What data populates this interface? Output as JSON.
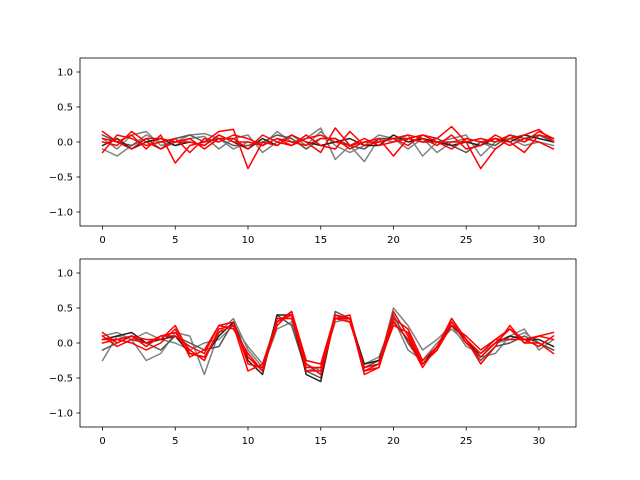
{
  "chart_data": [
    {
      "type": "line",
      "title": "",
      "xlabel": "",
      "ylabel": "",
      "xlim": [
        -1.55,
        32.55
      ],
      "ylim": [
        -1.2,
        1.2
      ],
      "xticks": [
        0,
        5,
        10,
        15,
        20,
        25,
        30
      ],
      "yticks": [
        -1.0,
        -0.5,
        0.0,
        0.5,
        1.0
      ],
      "xtick_labels": [
        "0",
        "5",
        "10",
        "15",
        "20",
        "25",
        "30"
      ],
      "ytick_labels": [
        "−1.0",
        "−0.5",
        "0.0",
        "0.5",
        "1.0"
      ],
      "grid": false,
      "x": [
        0,
        1,
        2,
        3,
        4,
        5,
        6,
        7,
        8,
        9,
        10,
        11,
        12,
        13,
        14,
        15,
        16,
        17,
        18,
        19,
        20,
        21,
        22,
        23,
        24,
        25,
        26,
        27,
        28,
        29,
        30,
        31
      ],
      "series": [
        {
          "color": "#808080",
          "values": [
            0.05,
            -0.1,
            0.1,
            0.15,
            -0.05,
            0.0,
            0.1,
            0.12,
            0.05,
            -0.1,
            0.0,
            -0.05,
            0.15,
            0.0,
            0.05,
            0.2,
            -0.25,
            -0.05,
            -0.28,
            0.05,
            0.0,
            0.1,
            -0.2,
            0.0,
            0.05,
            0.1,
            -0.2,
            0.0,
            0.05,
            0.0,
            0.1,
            0.02
          ]
        },
        {
          "color": "#808080",
          "values": [
            -0.1,
            -0.2,
            -0.05,
            0.1,
            0.0,
            -0.05,
            0.05,
            0.08,
            -0.1,
            0.05,
            0.1,
            -0.15,
            0.0,
            0.1,
            -0.05,
            0.15,
            -0.05,
            -0.15,
            -0.05,
            0.1,
            0.05,
            -0.1,
            0.05,
            -0.15,
            0.0,
            0.05,
            0.0,
            -0.1,
            0.05,
            -0.05,
            0.0,
            -0.05
          ]
        },
        {
          "color": "#555555",
          "values": [
            0.1,
            0.0,
            -0.05,
            0.05,
            -0.1,
            0.05,
            0.1,
            0.0,
            0.05,
            -0.05,
            -0.05,
            0.0,
            0.1,
            0.05,
            -0.1,
            0.05,
            0.05,
            -0.05,
            -0.1,
            0.05,
            0.05,
            0.05,
            0.0,
            0.05,
            -0.05,
            -0.15,
            0.0,
            -0.05,
            0.1,
            0.05,
            0.1,
            0.0
          ]
        },
        {
          "color": "#222222",
          "values": [
            -0.05,
            0.05,
            -0.1,
            0.0,
            0.05,
            -0.05,
            0.0,
            -0.05,
            0.1,
            0.0,
            -0.1,
            0.05,
            -0.05,
            0.1,
            0.0,
            -0.05,
            0.0,
            0.05,
            -0.05,
            -0.05,
            0.1,
            0.0,
            0.05,
            0.0,
            -0.05,
            0.0,
            -0.05,
            0.05,
            0.0,
            0.1,
            0.05,
            0.0
          ]
        },
        {
          "color": "#ff0000",
          "values": [
            0.15,
            0.0,
            0.1,
            -0.1,
            0.1,
            -0.3,
            -0.05,
            0.0,
            0.15,
            0.18,
            -0.38,
            0.0,
            -0.05,
            0.1,
            0.0,
            -0.15,
            0.2,
            -0.05,
            0.0,
            0.05,
            -0.2,
            0.05,
            0.1,
            0.05,
            0.22,
            0.0,
            -0.38,
            -0.1,
            0.05,
            0.1,
            0.18,
            0.0
          ]
        },
        {
          "color": "#ff0000",
          "values": [
            -0.15,
            0.1,
            0.05,
            -0.05,
            0.0,
            0.05,
            -0.15,
            0.05,
            0.0,
            0.1,
            0.05,
            -0.05,
            0.05,
            -0.05,
            0.1,
            -0.05,
            -0.1,
            0.15,
            -0.05,
            0.0,
            0.05,
            0.1,
            0.05,
            -0.05,
            0.1,
            -0.1,
            -0.05,
            0.1,
            0.0,
            -0.15,
            0.1,
            0.05
          ]
        },
        {
          "color": "#ff0000",
          "values": [
            0.0,
            -0.05,
            0.15,
            0.0,
            -0.1,
            0.0,
            0.05,
            -0.1,
            0.05,
            0.05,
            -0.1,
            0.1,
            0.0,
            -0.05,
            0.05,
            0.1,
            0.0,
            -0.05,
            0.05,
            -0.05,
            0.0,
            0.05,
            0.0,
            0.0,
            -0.1,
            0.05,
            0.0,
            0.05,
            -0.05,
            0.05,
            0.0,
            -0.1
          ]
        },
        {
          "color": "#ff0000",
          "values": [
            0.05,
            0.0,
            -0.1,
            0.05,
            0.05,
            0.0,
            0.0,
            -0.05,
            0.1,
            0.0,
            0.0,
            -0.05,
            0.05,
            0.0,
            -0.05,
            0.05,
            0.05,
            -0.1,
            0.0,
            0.0,
            0.05,
            -0.05,
            0.1,
            0.0,
            0.0,
            0.0,
            0.05,
            0.0,
            0.1,
            0.0,
            0.15,
            0.05
          ]
        }
      ]
    },
    {
      "type": "line",
      "title": "",
      "xlabel": "",
      "ylabel": "",
      "xlim": [
        -1.55,
        32.55
      ],
      "ylim": [
        -1.2,
        1.2
      ],
      "xticks": [
        0,
        5,
        10,
        15,
        20,
        25,
        30
      ],
      "yticks": [
        -1.0,
        -0.5,
        0.0,
        0.5,
        1.0
      ],
      "xtick_labels": [
        "0",
        "5",
        "10",
        "15",
        "20",
        "25",
        "30"
      ],
      "ytick_labels": [
        "−1.0",
        "−0.5",
        "0.0",
        "0.5",
        "1.0"
      ],
      "grid": false,
      "x": [
        0,
        1,
        2,
        3,
        4,
        5,
        6,
        7,
        8,
        9,
        10,
        11,
        12,
        13,
        14,
        15,
        16,
        17,
        18,
        19,
        20,
        21,
        22,
        23,
        24,
        25,
        26,
        27,
        28,
        29,
        30,
        31
      ],
      "series": [
        {
          "color": "#808080",
          "values": [
            -0.25,
            0.1,
            0.05,
            -0.25,
            -0.15,
            0.15,
            0.1,
            -0.45,
            0.15,
            0.35,
            -0.1,
            -0.35,
            0.2,
            0.3,
            -0.3,
            -0.4,
            0.4,
            0.3,
            -0.3,
            -0.2,
            0.35,
            -0.1,
            -0.25,
            0.0,
            0.2,
            0.0,
            -0.2,
            -0.15,
            0.1,
            0.2,
            -0.1,
            0.05
          ]
        },
        {
          "color": "#808080",
          "values": [
            0.1,
            0.15,
            0.05,
            0.15,
            0.05,
            0.0,
            -0.1,
            0.0,
            0.05,
            0.25,
            -0.05,
            -0.3,
            0.35,
            0.35,
            -0.4,
            -0.35,
            0.3,
            0.35,
            -0.35,
            -0.3,
            0.5,
            0.25,
            -0.1,
            0.05,
            0.25,
            -0.05,
            -0.15,
            0.0,
            0.05,
            0.15,
            0.0,
            -0.1
          ]
        },
        {
          "color": "#555555",
          "values": [
            -0.1,
            0.0,
            0.1,
            0.0,
            -0.1,
            0.1,
            0.0,
            -0.1,
            -0.05,
            0.3,
            -0.2,
            -0.4,
            0.4,
            0.25,
            -0.4,
            -0.5,
            0.45,
            0.35,
            -0.35,
            -0.25,
            0.4,
            0.0,
            -0.3,
            -0.1,
            0.3,
            0.05,
            -0.25,
            -0.05,
            0.0,
            0.1,
            0.0,
            -0.1
          ]
        },
        {
          "color": "#222222",
          "values": [
            0.05,
            0.1,
            0.15,
            0.0,
            0.05,
            0.1,
            -0.15,
            -0.2,
            0.1,
            0.3,
            -0.25,
            -0.45,
            0.4,
            0.4,
            -0.45,
            -0.55,
            0.4,
            0.35,
            -0.3,
            -0.25,
            0.3,
            0.05,
            -0.3,
            -0.05,
            0.25,
            0.05,
            -0.2,
            0.0,
            0.1,
            0.05,
            0.05,
            -0.05
          ]
        },
        {
          "color": "#ff0000",
          "values": [
            0.15,
            0.0,
            0.1,
            -0.05,
            0.1,
            0.15,
            -0.1,
            -0.25,
            0.2,
            0.25,
            -0.4,
            -0.3,
            0.3,
            0.45,
            -0.25,
            -0.3,
            0.4,
            0.35,
            -0.45,
            -0.35,
            0.3,
            0.05,
            -0.35,
            -0.05,
            0.35,
            0.05,
            -0.3,
            -0.05,
            0.25,
            0.0,
            0.1,
            0.15
          ]
        },
        {
          "color": "#ff0000",
          "values": [
            0.0,
            0.05,
            0.0,
            -0.1,
            0.0,
            0.2,
            -0.2,
            -0.1,
            0.25,
            0.3,
            -0.3,
            -0.35,
            0.25,
            0.45,
            -0.35,
            -0.35,
            0.35,
            0.4,
            -0.4,
            -0.3,
            0.25,
            0.15,
            -0.3,
            -0.1,
            0.35,
            0.05,
            -0.15,
            0.05,
            0.05,
            0.05,
            -0.05,
            0.1
          ]
        },
        {
          "color": "#ff0000",
          "values": [
            0.1,
            -0.05,
            0.05,
            0.0,
            0.1,
            0.1,
            -0.05,
            -0.15,
            0.25,
            0.2,
            -0.15,
            -0.4,
            0.3,
            0.4,
            -0.4,
            -0.4,
            0.35,
            0.35,
            -0.4,
            -0.35,
            0.35,
            0.2,
            -0.25,
            -0.05,
            0.3,
            0.0,
            -0.2,
            0.0,
            0.2,
            0.0,
            0.0,
            -0.15
          ]
        },
        {
          "color": "#ff0000",
          "values": [
            0.05,
            0.05,
            0.1,
            0.05,
            0.05,
            0.25,
            -0.15,
            -0.2,
            0.15,
            0.25,
            -0.2,
            -0.4,
            0.35,
            0.35,
            -0.3,
            -0.45,
            0.35,
            0.3,
            -0.35,
            -0.3,
            0.45,
            0.1,
            -0.3,
            -0.1,
            0.25,
            0.1,
            -0.1,
            0.05,
            0.2,
            0.05,
            0.1,
            0.05
          ]
        }
      ]
    }
  ]
}
